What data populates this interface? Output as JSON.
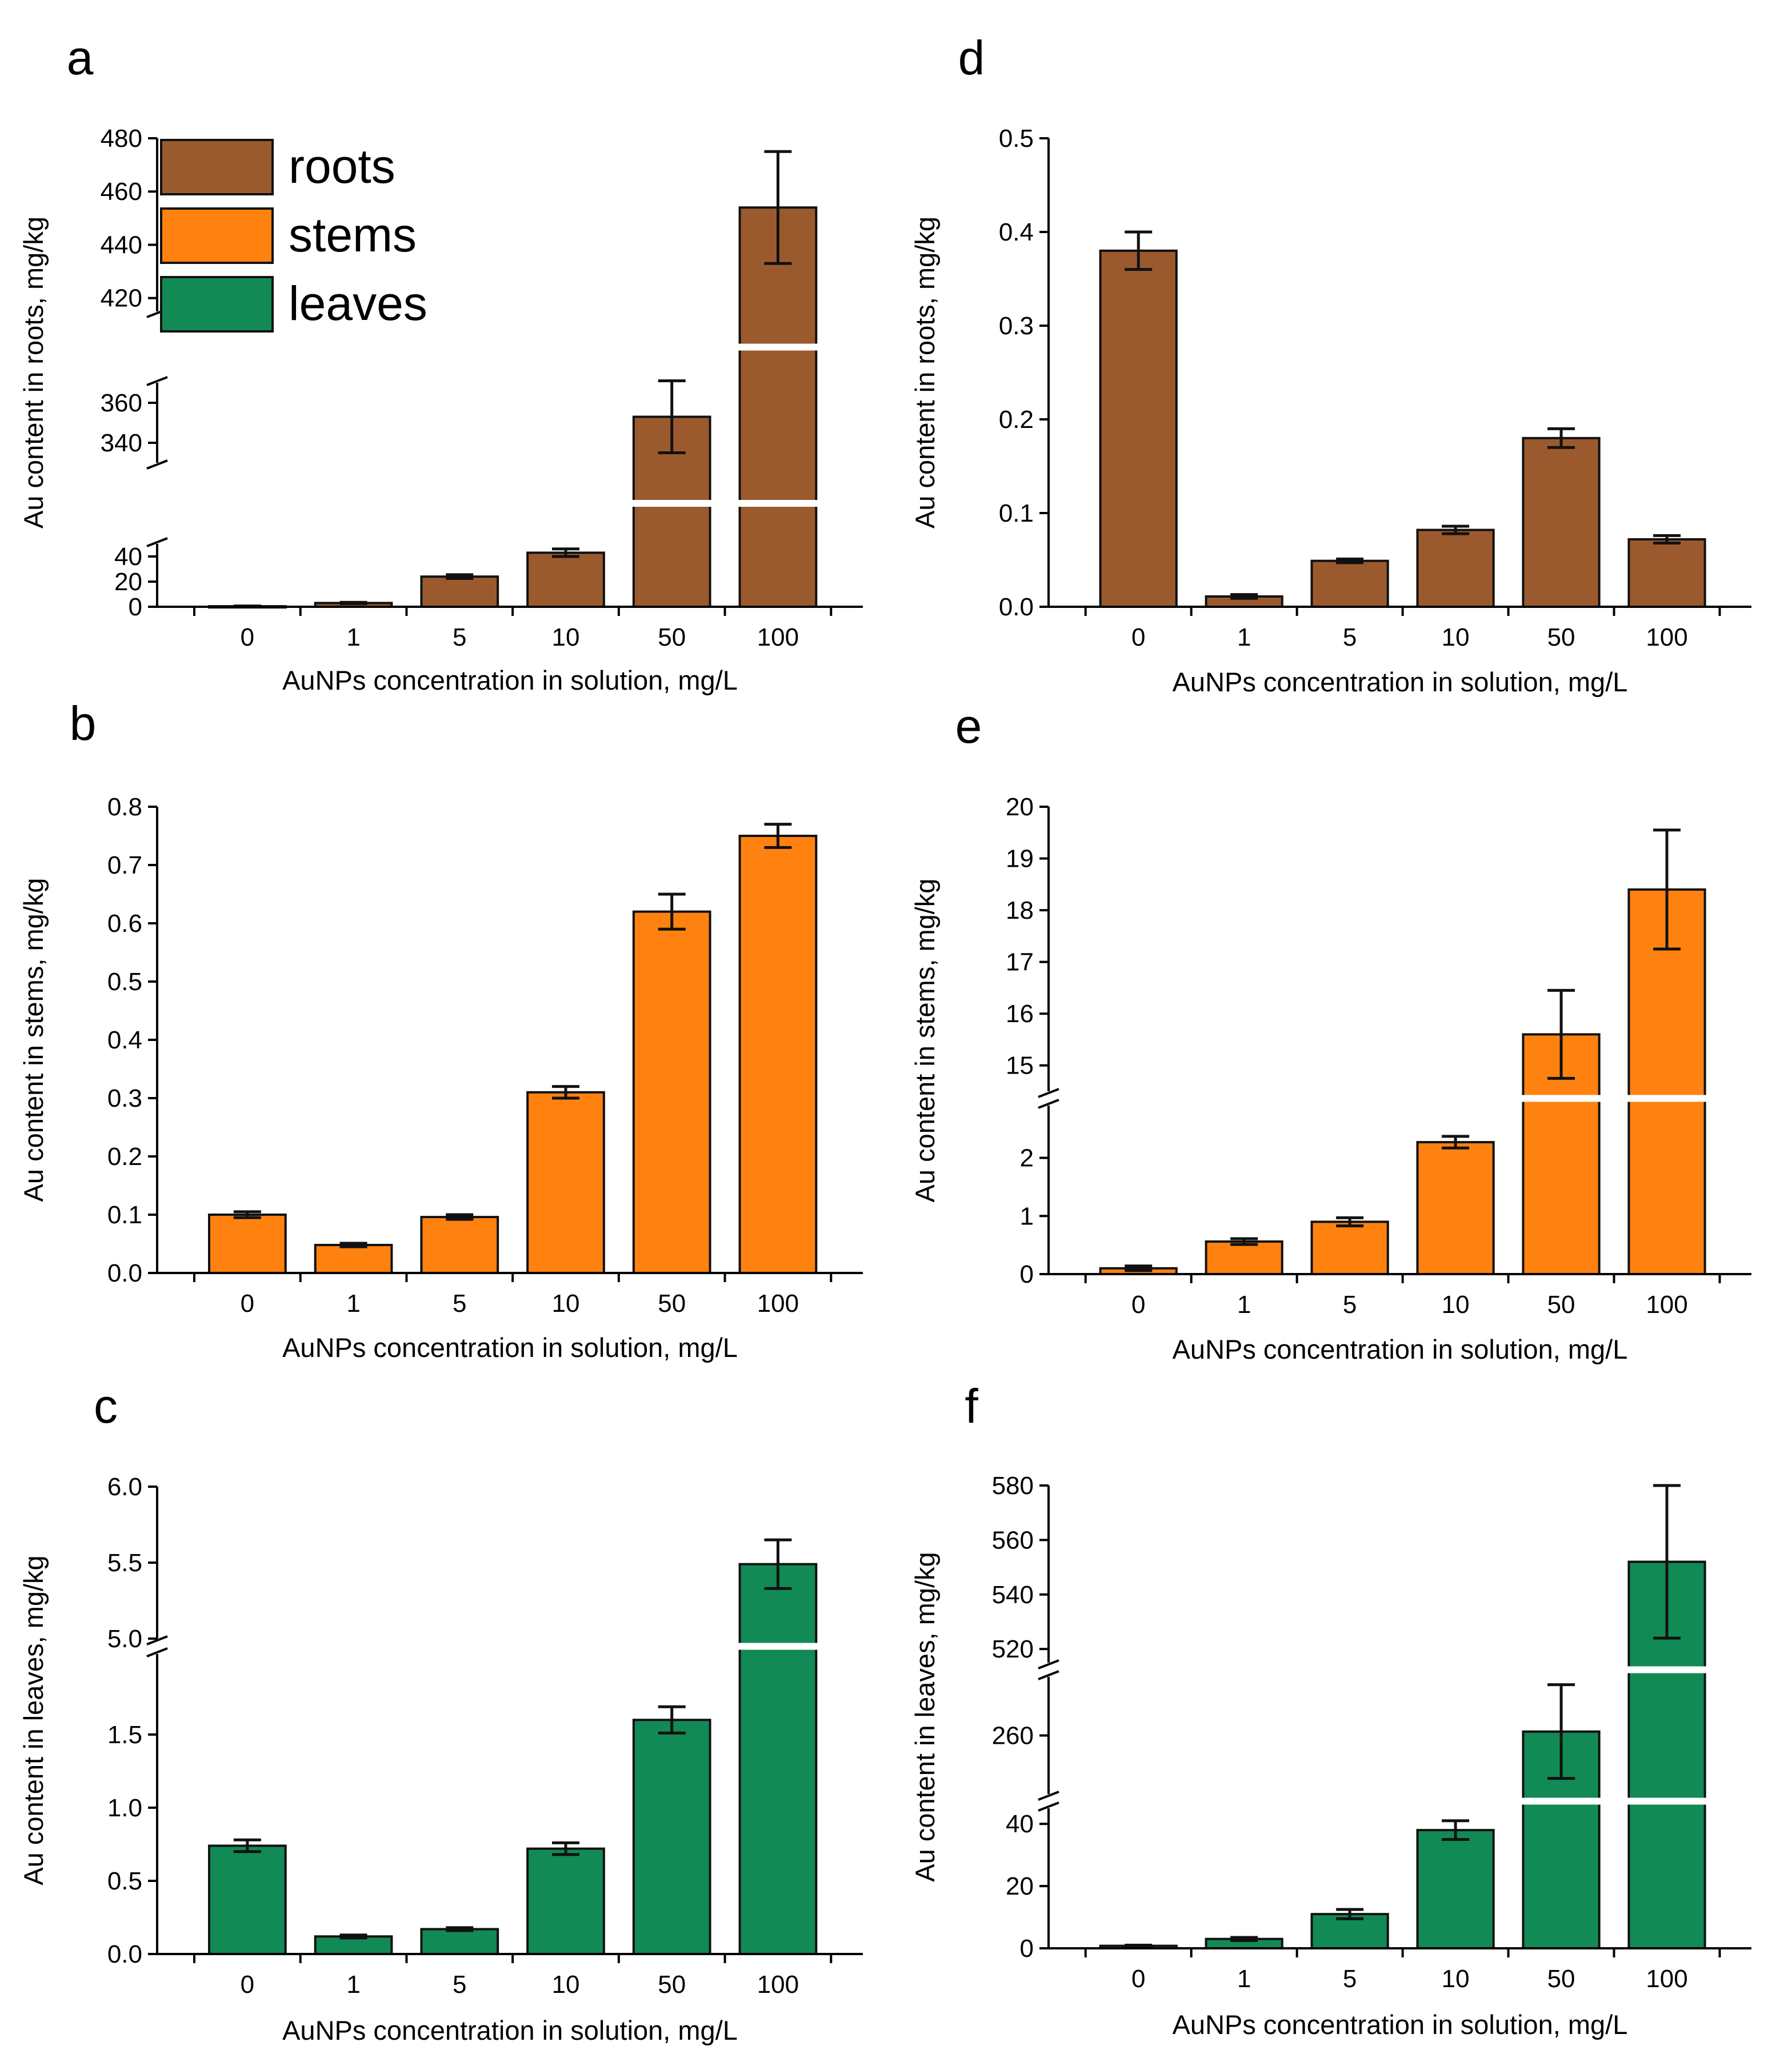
{
  "colors": {
    "roots": "#9b5a2e",
    "stems": "#ff8210",
    "leaves": "#128a55"
  },
  "legend": [
    {
      "label": "roots",
      "color": "#9b5a2e"
    },
    {
      "label": "stems",
      "color": "#ff8210"
    },
    {
      "label": "leaves",
      "color": "#128a55"
    }
  ],
  "chart_data": [
    {
      "panel": "a",
      "type": "bar",
      "xlabel": "AuNPs concentration in solution, mg/L",
      "ylabel": "Au content in roots, mg/kg",
      "categories": [
        "0",
        "1",
        "5",
        "10",
        "50",
        "100"
      ],
      "values": [
        0.4,
        3,
        24,
        43,
        353,
        454
      ],
      "errors": [
        0.2,
        0.5,
        1.5,
        3,
        18,
        21
      ],
      "color": "roots",
      "segments": [
        {
          "range": [
            0,
            50
          ],
          "ticks": [
            "0",
            "20",
            "40"
          ]
        },
        {
          "range": [
            330,
            370
          ],
          "ticks": [
            "340",
            "360"
          ]
        },
        {
          "range": [
            415,
            480
          ],
          "ticks": [
            "420",
            "440",
            "460",
            "480"
          ]
        }
      ]
    },
    {
      "panel": "b",
      "type": "bar",
      "xlabel": "AuNPs concentration in solution, mg/L",
      "ylabel": "Au content in stems, mg/kg",
      "categories": [
        "0",
        "1",
        "5",
        "10",
        "50",
        "100"
      ],
      "values": [
        0.1,
        0.048,
        0.096,
        0.31,
        0.62,
        0.75
      ],
      "errors": [
        0.005,
        0.003,
        0.004,
        0.01,
        0.03,
        0.02
      ],
      "color": "stems",
      "segments": [
        {
          "range": [
            0,
            0.8
          ],
          "ticks": [
            "0.0",
            "0.1",
            "0.2",
            "0.3",
            "0.4",
            "0.5",
            "0.6",
            "0.7",
            "0.8"
          ]
        }
      ]
    },
    {
      "panel": "c",
      "type": "bar",
      "xlabel": "AuNPs concentration in solution, mg/L",
      "ylabel": "Au content in leaves, mg/kg",
      "categories": [
        "0",
        "1",
        "5",
        "10",
        "50",
        "100"
      ],
      "values": [
        0.74,
        0.12,
        0.17,
        0.72,
        1.6,
        5.49
      ],
      "errors": [
        0.04,
        0.01,
        0.01,
        0.04,
        0.09,
        0.16
      ],
      "color": "leaves",
      "segments": [
        {
          "range": [
            0,
            2.05
          ],
          "ticks": [
            "0.0",
            "0.5",
            "1.0",
            "1.5"
          ]
        },
        {
          "range": [
            5.0,
            6.0
          ],
          "ticks": [
            "5.0",
            "5.5",
            "6.0"
          ]
        }
      ]
    },
    {
      "panel": "d",
      "type": "bar",
      "xlabel": "AuNPs concentration in solution, mg/L",
      "ylabel": "Au content in roots, mg/kg",
      "categories": [
        "0",
        "1",
        "5",
        "10",
        "50",
        "100"
      ],
      "values": [
        0.38,
        0.011,
        0.049,
        0.082,
        0.18,
        0.072
      ],
      "errors": [
        0.02,
        0.002,
        0.002,
        0.004,
        0.01,
        0.004
      ],
      "color": "roots",
      "segments": [
        {
          "range": [
            0,
            0.5
          ],
          "ticks": [
            "0.0",
            "0.1",
            "0.2",
            "0.3",
            "0.4",
            "0.5"
          ]
        }
      ]
    },
    {
      "panel": "e",
      "type": "bar",
      "xlabel": "AuNPs concentration in solution, mg/L",
      "ylabel": "Au content in stems, mg/kg",
      "categories": [
        "0",
        "1",
        "5",
        "10",
        "50",
        "100"
      ],
      "values": [
        0.1,
        0.56,
        0.9,
        2.27,
        15.6,
        18.4
      ],
      "errors": [
        0.04,
        0.05,
        0.07,
        0.1,
        0.85,
        1.15
      ],
      "color": "stems",
      "segments": [
        {
          "range": [
            0,
            2.9
          ],
          "ticks": [
            "0",
            "1",
            "2"
          ]
        },
        {
          "range": [
            14.5,
            20
          ],
          "ticks": [
            "15",
            "16",
            "17",
            "18",
            "19",
            "20"
          ]
        }
      ]
    },
    {
      "panel": "f",
      "type": "bar",
      "xlabel": "AuNPs concentration in solution, mg/L",
      "ylabel": "Au content in leaves, mg/kg",
      "categories": [
        "0",
        "1",
        "5",
        "10",
        "50",
        "100"
      ],
      "values": [
        0.8,
        3,
        11,
        38,
        261,
        552
      ],
      "errors": [
        0.2,
        0.5,
        1.5,
        3,
        12,
        28
      ],
      "color": "leaves",
      "segments": [
        {
          "range": [
            0,
            45
          ],
          "ticks": [
            "0",
            "20",
            "40"
          ]
        },
        {
          "range": [
            245,
            275
          ],
          "ticks": [
            "260"
          ]
        },
        {
          "range": [
            515,
            580
          ],
          "ticks": [
            "520",
            "540",
            "560",
            "580"
          ]
        }
      ]
    }
  ]
}
